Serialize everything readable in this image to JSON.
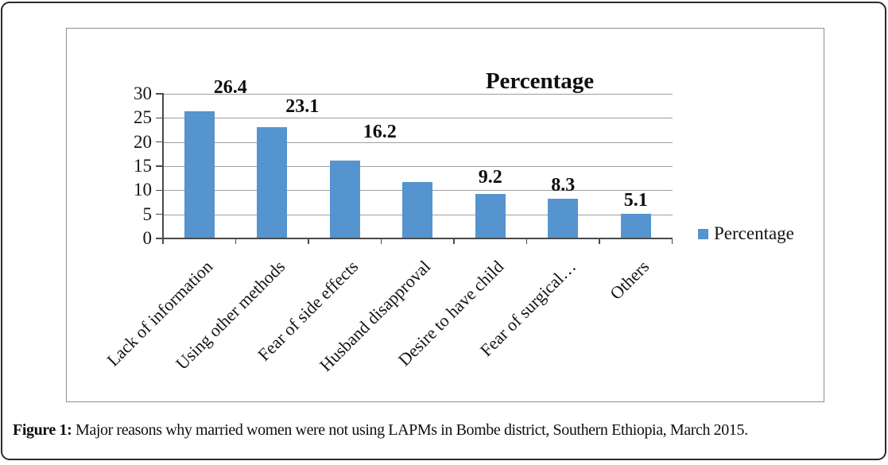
{
  "figure": {
    "caption_label": "Figure 1:",
    "caption_text": " Major reasons why married women were not using LAPMs in Bombe district, Southern Ethiopia, March 2015."
  },
  "chart_data": {
    "type": "bar",
    "title": "Percentage",
    "categories": [
      "Lack of information",
      "Using other methods",
      "Fear of side effects",
      "Husband disapproval",
      "Desire to have child",
      "Fear of surgical…",
      "Others"
    ],
    "values": [
      26.4,
      23.1,
      16.2,
      11.7,
      9.2,
      8.3,
      5.1
    ],
    "data_labels": [
      "26.4",
      "23.1",
      "16.2",
      null,
      "9.2",
      "8.3",
      "5.1"
    ],
    "label_offsets": [
      [
        39,
        -30
      ],
      [
        38,
        -26
      ],
      [
        44,
        -36
      ],
      null,
      [
        0,
        -21
      ],
      [
        0,
        -17
      ],
      [
        0,
        -17
      ]
    ],
    "xlabel": "",
    "ylabel": "",
    "ylim": [
      0,
      30
    ],
    "y_ticks": [
      0,
      5,
      10,
      15,
      20,
      25,
      30
    ],
    "grid": true,
    "legend": {
      "label": "Percentage",
      "position": "right"
    },
    "colors": {
      "bar": "#5594ce",
      "grid": "#9e9e9e",
      "axis": "#4a4a4a",
      "chart_border": "#8f8f8f",
      "card_border": "#2b2b2b"
    }
  }
}
